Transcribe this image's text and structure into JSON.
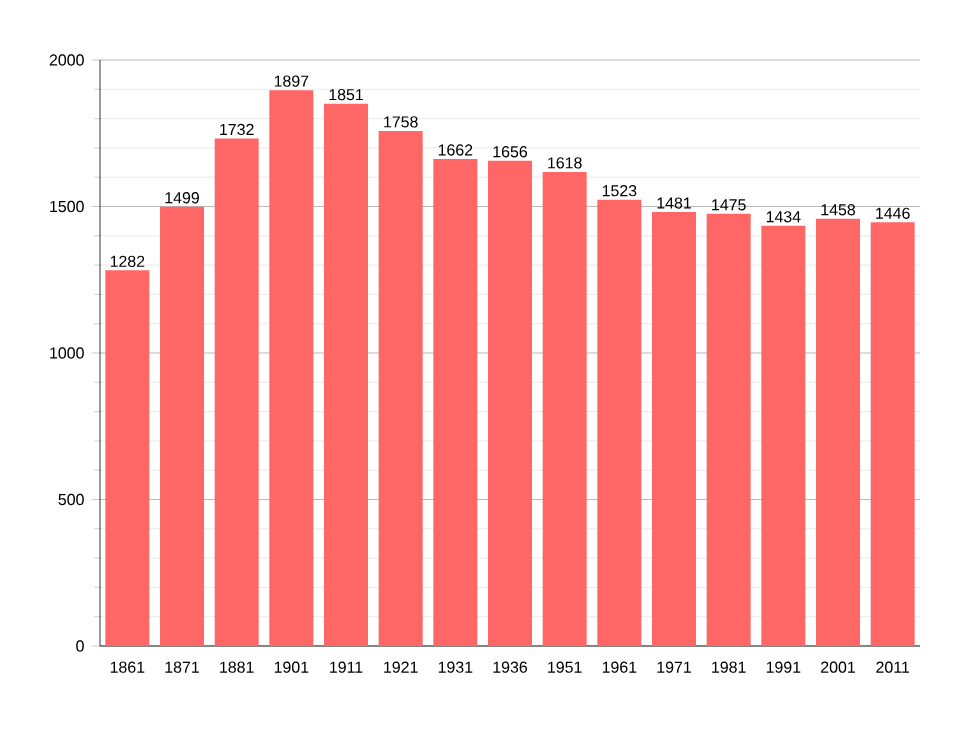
{
  "chart_data": {
    "type": "bar",
    "categories": [
      "1861",
      "1871",
      "1881",
      "1901",
      "1911",
      "1921",
      "1931",
      "1936",
      "1951",
      "1961",
      "1971",
      "1981",
      "1991",
      "2001",
      "2011"
    ],
    "values": [
      1282,
      1499,
      1732,
      1897,
      1851,
      1758,
      1662,
      1656,
      1618,
      1523,
      1481,
      1475,
      1434,
      1458,
      1446
    ],
    "color": "#ff6666",
    "ylim": [
      0,
      2000
    ],
    "yticks": [
      0,
      500,
      1000,
      1500,
      2000
    ],
    "grid": "y",
    "data_labels": true
  }
}
